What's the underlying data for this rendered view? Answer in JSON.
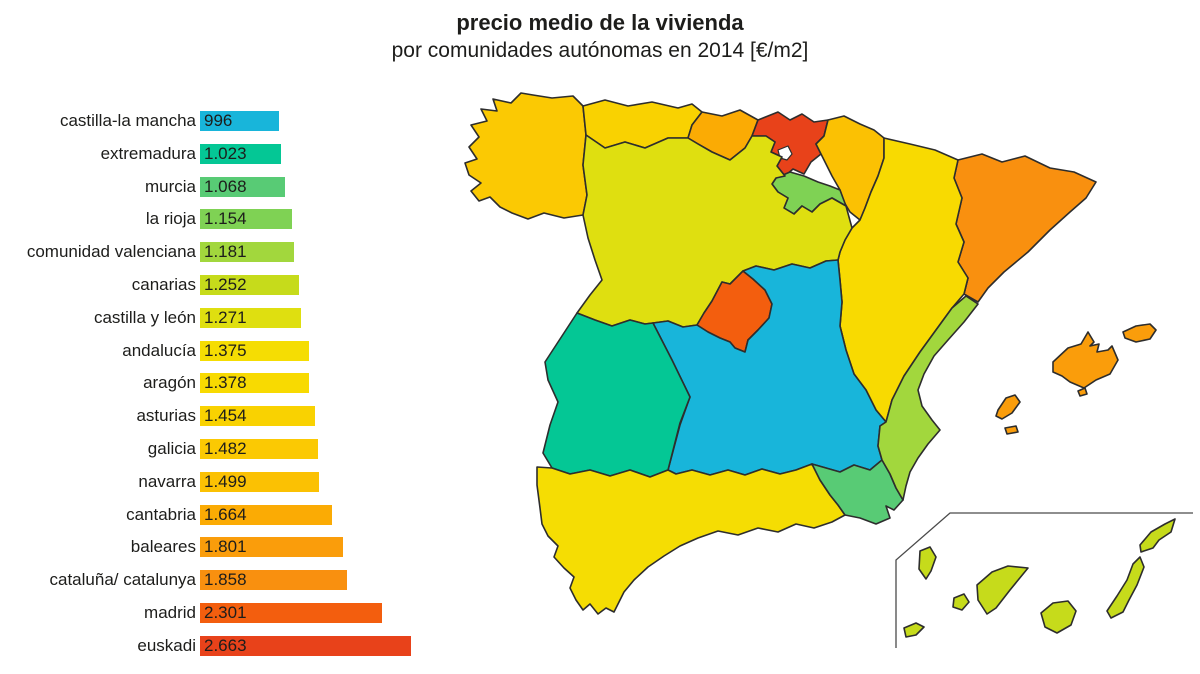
{
  "title": "precio medio de la vivienda",
  "subtitle": "por comunidades autónomas en 2014 [€/m2]",
  "chart_data": {
    "type": "bar",
    "orientation": "horizontal",
    "title": "precio medio de la vivienda",
    "subtitle": "por comunidades autónomas en 2014 [€/m2]",
    "unit": "€/m2",
    "year": "2014",
    "xlim": [
      0,
      2800
    ],
    "grid": false,
    "categories": [
      "castilla-la mancha",
      "extremadura",
      "murcia",
      "la rioja",
      "comunidad valenciana",
      "canarias",
      "castilla y león",
      "andalucía",
      "aragón",
      "asturias",
      "galicia",
      "navarra",
      "cantabria",
      "baleares",
      "cataluña/ catalunya",
      "madrid",
      "euskadi"
    ],
    "values": [
      996,
      1023,
      1068,
      1154,
      1181,
      1252,
      1271,
      1375,
      1378,
      1454,
      1482,
      1499,
      1664,
      1801,
      1858,
      2301,
      2663
    ],
    "value_labels": [
      "996",
      "1.023",
      "1.068",
      "1.154",
      "1.181",
      "1.252",
      "1.271",
      "1.375",
      "1.378",
      "1.454",
      "1.482",
      "1.499",
      "1.664",
      "1.801",
      "1.858",
      "2.301",
      "2.663"
    ],
    "colors": [
      "#18b5da",
      "#04c795",
      "#58cb75",
      "#7fd254",
      "#a2d73d",
      "#c6db1b",
      "#dfdf10",
      "#f5dd03",
      "#f8da01",
      "#f9d201",
      "#fbc903",
      "#fbc103",
      "#fbab04",
      "#fa9d0b",
      "#f9900f",
      "#f35e0e",
      "#e8421a"
    ],
    "region_ids": [
      "castilla-la-mancha",
      "extremadura",
      "murcia",
      "la-rioja",
      "comunidad-valenciana",
      "canarias",
      "castilla-y-leon",
      "andalucia",
      "aragon",
      "asturias",
      "galicia",
      "navarra",
      "cantabria",
      "baleares",
      "cataluna",
      "madrid",
      "euskadi"
    ]
  },
  "map": {
    "type": "choropleth",
    "description": "mapa de España por comunidades autónomas, coloreado según el precio medio de la vivienda",
    "outline_color": "#2d2d2d",
    "inset_border_color": "#4a4a4a",
    "inset": "canarias"
  }
}
